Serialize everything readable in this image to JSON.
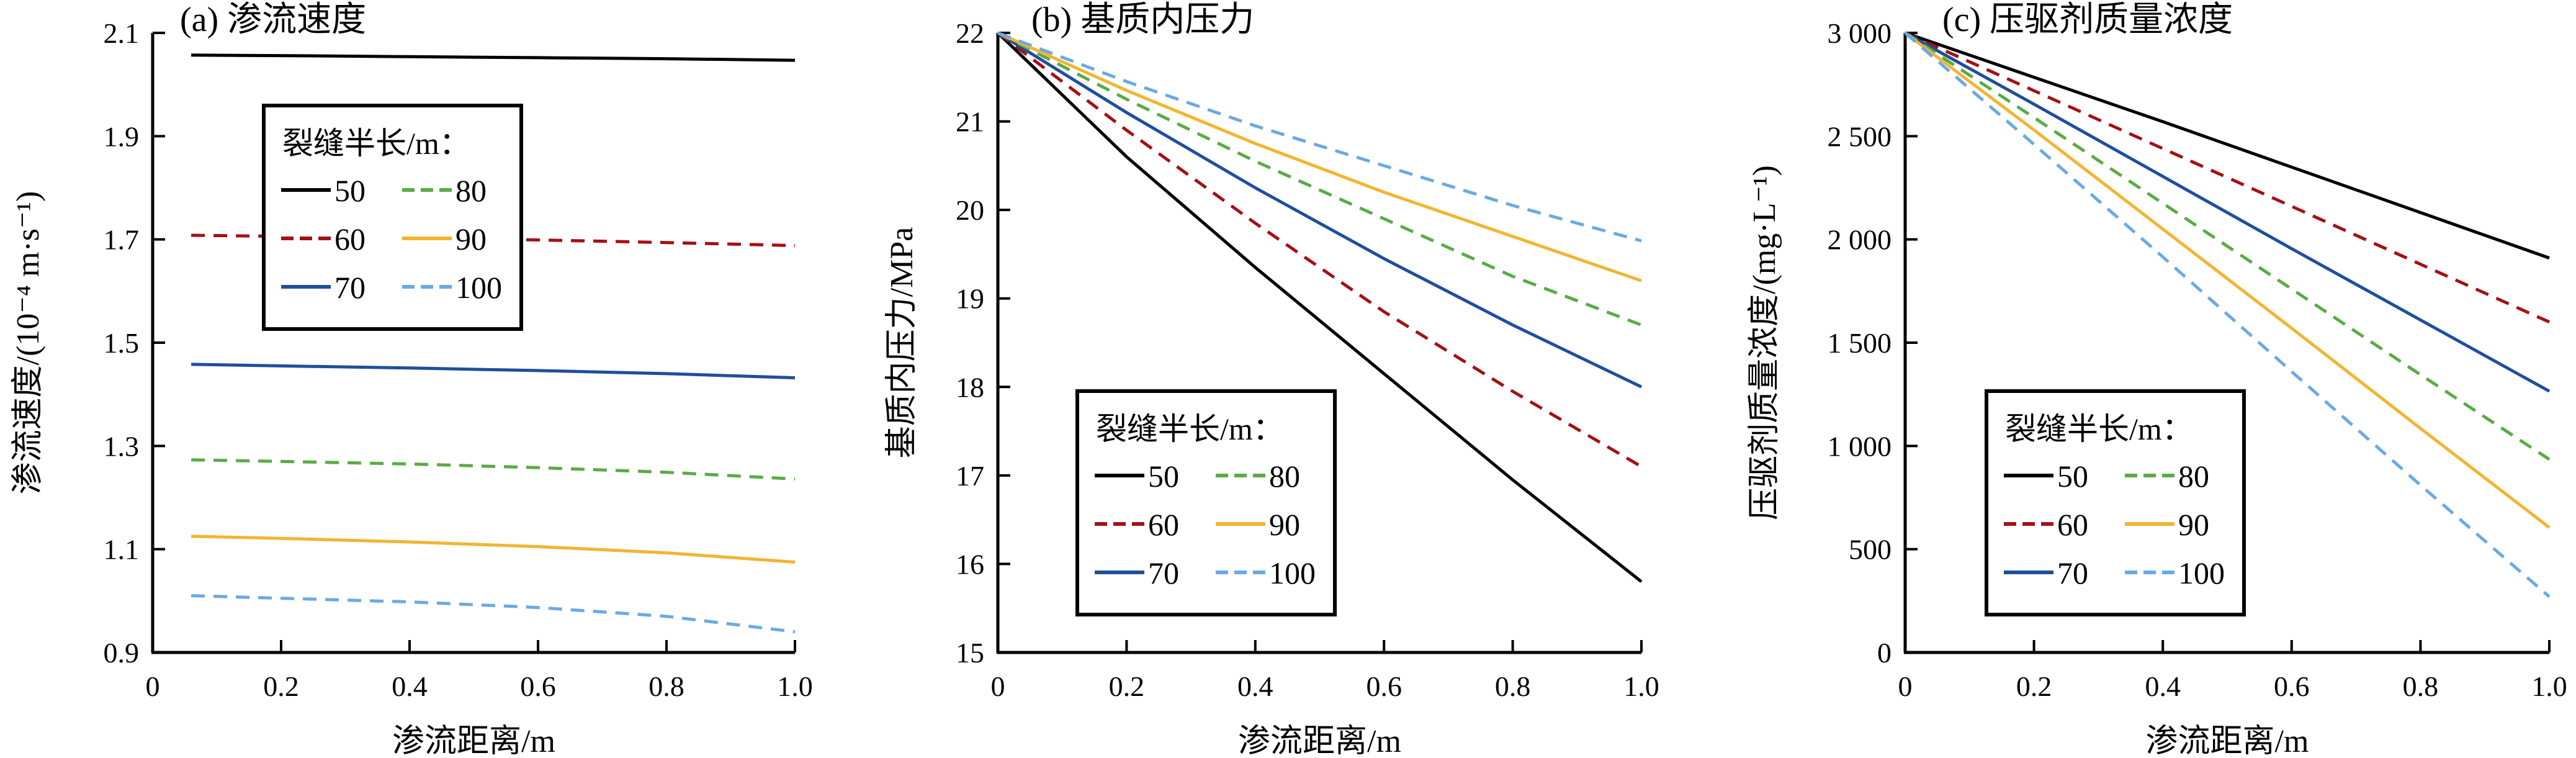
{
  "chart_data": [
    {
      "type": "line",
      "title": "(a) 渗流速度",
      "xlabel": "渗流距离/m",
      "ylabel": "渗流速度/(10⁻⁴ m·s⁻¹)",
      "xlim": [
        0,
        1.0
      ],
      "ylim": [
        0.9,
        2.1
      ],
      "xticks": [
        0,
        0.2,
        0.4,
        0.6,
        0.8,
        1.0
      ],
      "xtick_labels": [
        "0",
        "0.2",
        "0.4",
        "0.6",
        "0.8",
        "1.0"
      ],
      "yticks": [
        0.9,
        1.1,
        1.3,
        1.5,
        1.7,
        1.9,
        2.1
      ],
      "ytick_labels": [
        "0.9",
        "1.1",
        "1.3",
        "1.5",
        "1.7",
        "1.9",
        "2.1"
      ],
      "legend": {
        "title": "裂缝半长/m：",
        "placement": "upper-left"
      },
      "x": [
        0.06,
        0.2,
        0.4,
        0.6,
        0.8,
        1.0
      ],
      "series": [
        {
          "name": "50",
          "values": [
            2.057,
            2.056,
            2.054,
            2.052,
            2.05,
            2.047
          ]
        },
        {
          "name": "60",
          "values": [
            1.708,
            1.706,
            1.703,
            1.699,
            1.694,
            1.688
          ]
        },
        {
          "name": "70",
          "values": [
            1.458,
            1.455,
            1.451,
            1.446,
            1.44,
            1.432
          ]
        },
        {
          "name": "80",
          "values": [
            1.273,
            1.27,
            1.265,
            1.258,
            1.249,
            1.236
          ]
        },
        {
          "name": "90",
          "values": [
            1.125,
            1.121,
            1.114,
            1.105,
            1.093,
            1.075
          ]
        },
        {
          "name": "100",
          "values": [
            1.01,
            1.005,
            0.998,
            0.987,
            0.97,
            0.94
          ]
        }
      ]
    },
    {
      "type": "line",
      "title": "(b) 基质内压力",
      "xlabel": "渗流距离/m",
      "ylabel": "基质内压力/MPa",
      "xlim": [
        0,
        1.0
      ],
      "ylim": [
        15,
        22
      ],
      "xticks": [
        0,
        0.2,
        0.4,
        0.6,
        0.8,
        1.0
      ],
      "xtick_labels": [
        "0",
        "0.2",
        "0.4",
        "0.6",
        "0.8",
        "1.0"
      ],
      "yticks": [
        15,
        16,
        17,
        18,
        19,
        20,
        21,
        22
      ],
      "ytick_labels": [
        "15",
        "16",
        "17",
        "18",
        "19",
        "20",
        "21",
        "22"
      ],
      "legend": {
        "title": "裂缝半长/m：",
        "placement": "lower-left"
      },
      "x": [
        0,
        0.2,
        0.4,
        0.6,
        0.8,
        1.0
      ],
      "series": [
        {
          "name": "50",
          "values": [
            22.0,
            20.6,
            19.35,
            18.15,
            16.95,
            15.8
          ]
        },
        {
          "name": "60",
          "values": [
            22.0,
            20.9,
            19.85,
            18.85,
            17.95,
            17.1
          ]
        },
        {
          "name": "70",
          "values": [
            22.0,
            21.1,
            20.25,
            19.45,
            18.7,
            18.0
          ]
        },
        {
          "name": "80",
          "values": [
            22.0,
            21.25,
            20.55,
            19.9,
            19.25,
            18.7
          ]
        },
        {
          "name": "90",
          "values": [
            22.0,
            21.35,
            20.75,
            20.2,
            19.7,
            19.2
          ]
        },
        {
          "name": "100",
          "values": [
            22.0,
            21.45,
            20.95,
            20.5,
            20.05,
            19.65
          ]
        }
      ]
    },
    {
      "type": "line",
      "title": "(c) 压驱剂质量浓度",
      "xlabel": "渗流距离/m",
      "ylabel": "压驱剂质量浓度/(mg·L⁻¹)",
      "xlim": [
        0,
        1.0
      ],
      "ylim": [
        0,
        3000
      ],
      "xticks": [
        0,
        0.2,
        0.4,
        0.6,
        0.8,
        1.0
      ],
      "xtick_labels": [
        "0",
        "0.2",
        "0.4",
        "0.6",
        "0.8",
        "1.0"
      ],
      "yticks": [
        0,
        500,
        1000,
        1500,
        2000,
        2500,
        3000
      ],
      "ytick_labels": [
        "0",
        "500",
        "1 000",
        "1 500",
        "2 000",
        "2 500",
        "3 000"
      ],
      "legend": {
        "title": "裂缝半长/m：",
        "placement": "lower-left"
      },
      "x": [
        0,
        0.2,
        0.4,
        0.6,
        0.8,
        1.0
      ],
      "series": [
        {
          "name": "50",
          "values": [
            3000,
            2785,
            2570,
            2350,
            2130,
            1910
          ]
        },
        {
          "name": "60",
          "values": [
            3000,
            2720,
            2440,
            2160,
            1880,
            1600
          ]
        },
        {
          "name": "70",
          "values": [
            3000,
            2655,
            2305,
            1955,
            1610,
            1265
          ]
        },
        {
          "name": "80",
          "values": [
            3000,
            2590,
            2175,
            1760,
            1345,
            935
          ]
        },
        {
          "name": "90",
          "values": [
            3000,
            2530,
            2050,
            1570,
            1085,
            605
          ]
        },
        {
          "name": "100",
          "values": [
            3000,
            2460,
            1915,
            1360,
            810,
            270
          ]
        }
      ]
    }
  ],
  "styles": {
    "colors": [
      "#000000",
      "#a50f15",
      "#1f4e9c",
      "#5aab46",
      "#f2b531",
      "#6aa9e4"
    ],
    "dashed": [
      false,
      true,
      false,
      true,
      false,
      true
    ]
  }
}
